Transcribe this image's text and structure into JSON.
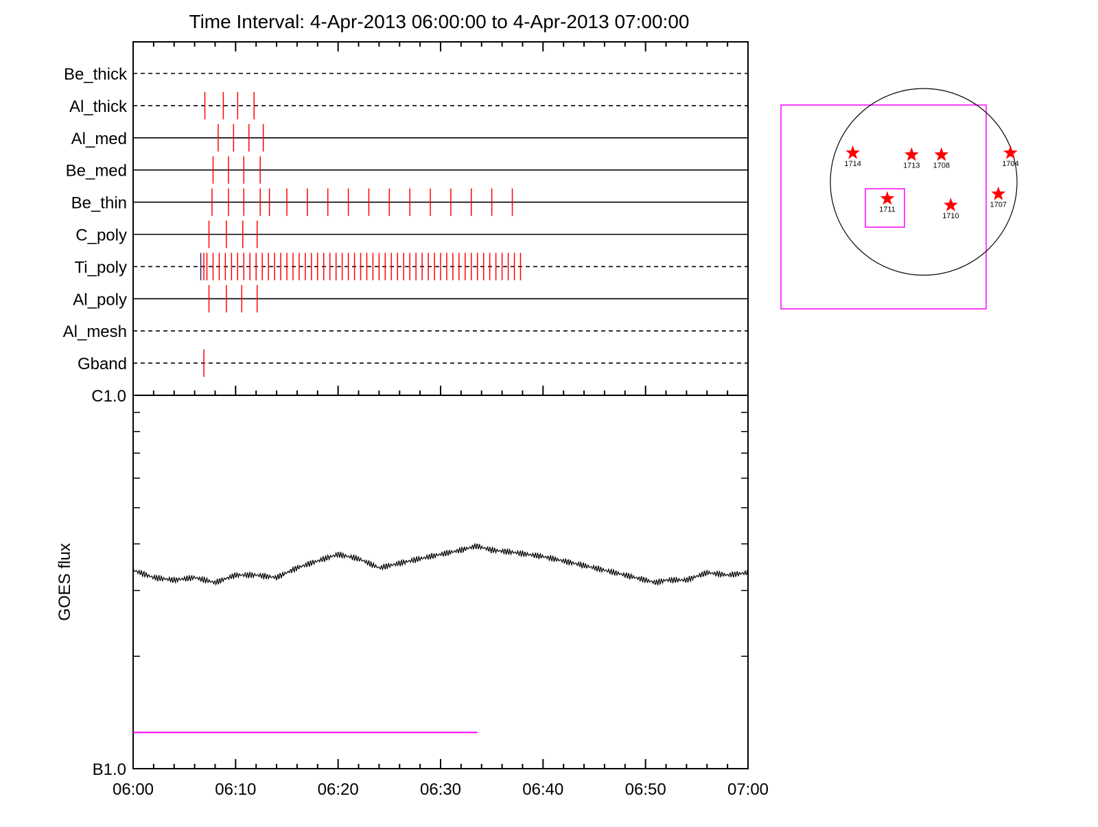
{
  "title": "Time Interval:  4-Apr-2013 06:00:00 to  4-Apr-2013 07:00:00",
  "colors": {
    "event": "#ff0000",
    "highlight": "#ff00ff",
    "axis": "#000000",
    "trace": "#000000"
  },
  "chart_data": [
    {
      "type": "event-timeline",
      "x_range": [
        "06:00",
        "07:00"
      ],
      "x_tick_labels": [
        "06:00",
        "06:10",
        "06:20",
        "06:30",
        "06:40",
        "06:50",
        "07:00"
      ],
      "channels": [
        {
          "name": "Be_thick",
          "style": "dashed",
          "event_minutes": []
        },
        {
          "name": "Al_thick",
          "style": "dashed",
          "event_minutes": [
            7.0,
            8.8,
            10.2,
            11.8
          ]
        },
        {
          "name": "Al_med",
          "style": "solid",
          "event_minutes": [
            8.3,
            9.8,
            11.3,
            12.7
          ]
        },
        {
          "name": "Be_med",
          "style": "solid",
          "event_minutes": [
            7.8,
            9.3,
            10.8,
            12.4
          ]
        },
        {
          "name": "Be_thin",
          "style": "solid",
          "event_minutes": [
            7.7,
            9.3,
            10.8,
            12.4,
            13.3,
            15.0,
            17.0,
            19.0,
            21.0,
            23.0,
            25.0,
            27.0,
            29.0,
            31.0,
            33.0,
            35.0,
            37.0
          ]
        },
        {
          "name": "C_poly",
          "style": "solid",
          "event_minutes": [
            7.4,
            9.1,
            10.7,
            12.1
          ]
        },
        {
          "name": "Ti_poly",
          "style": "dashed",
          "event_minutes": [
            6.6,
            6.9,
            7.2,
            7.8,
            8.4,
            9.0,
            9.6,
            10.2,
            10.8,
            11.4,
            12.0,
            12.6,
            13.2,
            13.8,
            14.4,
            15.0,
            15.6,
            16.2,
            16.8,
            17.4,
            18.0,
            18.6,
            19.2,
            19.8,
            20.4,
            21.0,
            21.6,
            22.2,
            22.8,
            23.4,
            24.0,
            24.6,
            25.2,
            25.8,
            26.4,
            27.0,
            27.6,
            28.2,
            28.8,
            29.4,
            30.0,
            30.6,
            31.2,
            31.8,
            32.4,
            33.0,
            33.6,
            34.2,
            34.8,
            35.4,
            36.0,
            36.6,
            37.2,
            37.8
          ]
        },
        {
          "name": "Al_poly",
          "style": "solid",
          "event_minutes": [
            7.4,
            9.1,
            10.6,
            12.1
          ]
        },
        {
          "name": "Al_mesh",
          "style": "dashed",
          "event_minutes": []
        },
        {
          "name": "Gband",
          "style": "dashed",
          "event_minutes": [
            6.9
          ]
        }
      ]
    },
    {
      "type": "line",
      "ylabel": "GOES flux",
      "y_tick_labels": [
        "C1.0",
        "B1.0"
      ],
      "y_scale": "log",
      "ylim": [
        1e-07,
        1e-06
      ],
      "x_range": [
        "06:00",
        "07:00"
      ],
      "x_tick_labels": [
        "06:00",
        "06:10",
        "06:20",
        "06:30",
        "06:40",
        "06:50",
        "07:00"
      ],
      "series": [
        {
          "x_minutes": [
            0,
            2,
            4,
            6,
            8,
            10,
            12,
            14,
            16,
            18,
            20,
            21,
            22,
            24,
            26,
            28,
            30,
            32,
            33.5,
            35,
            37,
            40,
            43,
            46,
            48,
            50,
            51,
            52,
            54,
            56,
            58,
            60
          ],
          "values": [
            3.4e-07,
            3.25e-07,
            3.2e-07,
            3.25e-07,
            3.15e-07,
            3.3e-07,
            3.3e-07,
            3.25e-07,
            3.45e-07,
            3.6e-07,
            3.75e-07,
            3.7e-07,
            3.65e-07,
            3.45e-07,
            3.55e-07,
            3.65e-07,
            3.75e-07,
            3.85e-07,
            3.95e-07,
            3.85e-07,
            3.8e-07,
            3.7e-07,
            3.55e-07,
            3.4e-07,
            3.3e-07,
            3.2e-07,
            3.15e-07,
            3.2e-07,
            3.2e-07,
            3.35e-07,
            3.3e-07,
            3.35e-07
          ]
        },
        {
          "x_minutes": [
            0,
            33.6
          ],
          "values": [
            1.25e-07,
            1.25e-07
          ]
        }
      ]
    },
    {
      "type": "scatter",
      "points": [
        {
          "label": "1714",
          "x": -0.76,
          "y": 0.31
        },
        {
          "label": "1713",
          "x": -0.13,
          "y": 0.29
        },
        {
          "label": "1708",
          "x": 0.19,
          "y": 0.29
        },
        {
          "label": "1704",
          "x": 0.93,
          "y": 0.31
        },
        {
          "label": "1711",
          "x": -0.39,
          "y": -0.18
        },
        {
          "label": "1710",
          "x": 0.29,
          "y": -0.25
        },
        {
          "label": "1707",
          "x": 0.8,
          "y": -0.13
        }
      ]
    }
  ]
}
